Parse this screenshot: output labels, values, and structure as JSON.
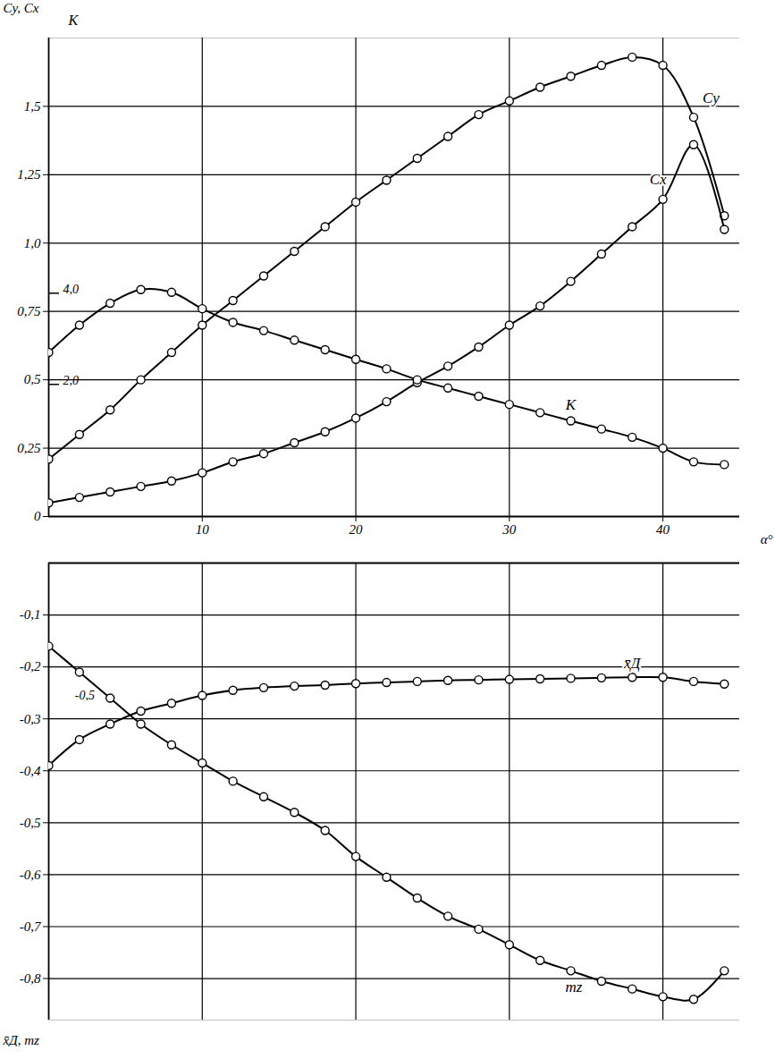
{
  "chart_data": [
    {
      "type": "line",
      "x_label": "α°",
      "y_label": "Cy, Cx",
      "y2_label": "K",
      "x": [
        0,
        2,
        4,
        6,
        8,
        10,
        12,
        14,
        16,
        18,
        20,
        22,
        24,
        26,
        28,
        30,
        32,
        34,
        36,
        38,
        40,
        42,
        44
      ],
      "xlim": [
        0,
        45
      ],
      "xticks": [
        10,
        20,
        30,
        40
      ],
      "ylim": [
        0,
        1.75
      ],
      "yticks": [
        {
          "value": 0,
          "label": "0"
        },
        {
          "value": 0.25,
          "label": "0,25"
        },
        {
          "value": 0.5,
          "label": "0,5"
        },
        {
          "value": 0.75,
          "label": "0,75"
        },
        {
          "value": 1.0,
          "label": "1,0"
        },
        {
          "value": 1.25,
          "label": "1,25"
        },
        {
          "value": 1.5,
          "label": "1,5"
        }
      ],
      "y2lim": [
        -0.9,
        9.6
      ],
      "y2ticks": [
        {
          "value": 2,
          "label": "2,0"
        },
        {
          "value": 4,
          "label": "4,0"
        }
      ],
      "grid": true,
      "series": [
        {
          "name": "Cy",
          "color": "#000000",
          "marker": "circle",
          "line_style": "solid",
          "values": [
            0.21,
            0.3,
            0.39,
            0.5,
            0.6,
            0.7,
            0.79,
            0.88,
            0.97,
            1.06,
            1.15,
            1.23,
            1.31,
            1.39,
            1.47,
            1.52,
            1.57,
            1.61,
            1.65,
            1.68,
            1.65,
            1.46,
            1.1
          ]
        },
        {
          "name": "Cx",
          "color": "#000000",
          "marker": "circle",
          "line_style": "solid",
          "values": [
            0.05,
            0.07,
            0.09,
            0.11,
            0.13,
            0.16,
            0.2,
            0.23,
            0.27,
            0.31,
            0.36,
            0.42,
            0.49,
            0.55,
            0.62,
            0.7,
            0.77,
            0.86,
            0.96,
            1.06,
            1.16,
            1.36,
            1.05
          ]
        },
        {
          "name": "K",
          "color": "#000000",
          "marker": "circle",
          "line_style": "solid",
          "axis": "y2",
          "values": [
            2.7,
            3.3,
            3.78,
            4.08,
            4.02,
            3.66,
            3.36,
            3.18,
            2.97,
            2.76,
            2.55,
            2.34,
            2.1,
            1.92,
            1.74,
            1.56,
            1.38,
            1.2,
            1.02,
            0.84,
            0.6,
            0.3,
            0.24
          ]
        }
      ]
    },
    {
      "type": "line",
      "y_label": "x̄Д, mz",
      "x": [
        0,
        2,
        4,
        6,
        8,
        10,
        12,
        14,
        16,
        18,
        20,
        22,
        24,
        26,
        28,
        30,
        32,
        34,
        36,
        38,
        40,
        42,
        44
      ],
      "xlim": [
        0,
        45
      ],
      "xticks": [
        10,
        20,
        30,
        40
      ],
      "ylim": [
        -0.88,
        0
      ],
      "yticks": [
        {
          "value": -0.1,
          "label": "-0,1"
        },
        {
          "value": -0.2,
          "label": "-0,2"
        },
        {
          "value": -0.3,
          "label": "-0,3"
        },
        {
          "value": -0.4,
          "label": "-0,4"
        },
        {
          "value": -0.5,
          "label": "-0,5"
        },
        {
          "value": -0.6,
          "label": "-0,6"
        },
        {
          "value": -0.7,
          "label": "-0,7"
        },
        {
          "value": -0.8,
          "label": "-0,8"
        }
      ],
      "tick_labels": "y",
      "grid": true,
      "annotations": [
        {
          "text": "-0,5",
          "x": 2,
          "y": -0.255
        }
      ],
      "series": [
        {
          "name": "x̄Д",
          "color": "#000000",
          "marker": "circle",
          "line_style": "solid",
          "values": [
            -0.39,
            -0.34,
            -0.31,
            -0.285,
            -0.27,
            -0.255,
            -0.245,
            -0.24,
            -0.237,
            -0.235,
            -0.232,
            -0.23,
            -0.228,
            -0.226,
            -0.225,
            -0.224,
            -0.223,
            -0.222,
            -0.221,
            -0.22,
            -0.22,
            -0.228,
            -0.233
          ]
        },
        {
          "name": "mz",
          "color": "#000000",
          "marker": "circle",
          "line_style": "solid",
          "values": [
            -0.16,
            -0.21,
            -0.26,
            -0.31,
            -0.35,
            -0.385,
            -0.42,
            -0.45,
            -0.48,
            -0.515,
            -0.565,
            -0.605,
            -0.645,
            -0.68,
            -0.705,
            -0.735,
            -0.765,
            -0.785,
            -0.805,
            -0.82,
            -0.835,
            -0.84,
            -0.785
          ]
        }
      ]
    }
  ]
}
